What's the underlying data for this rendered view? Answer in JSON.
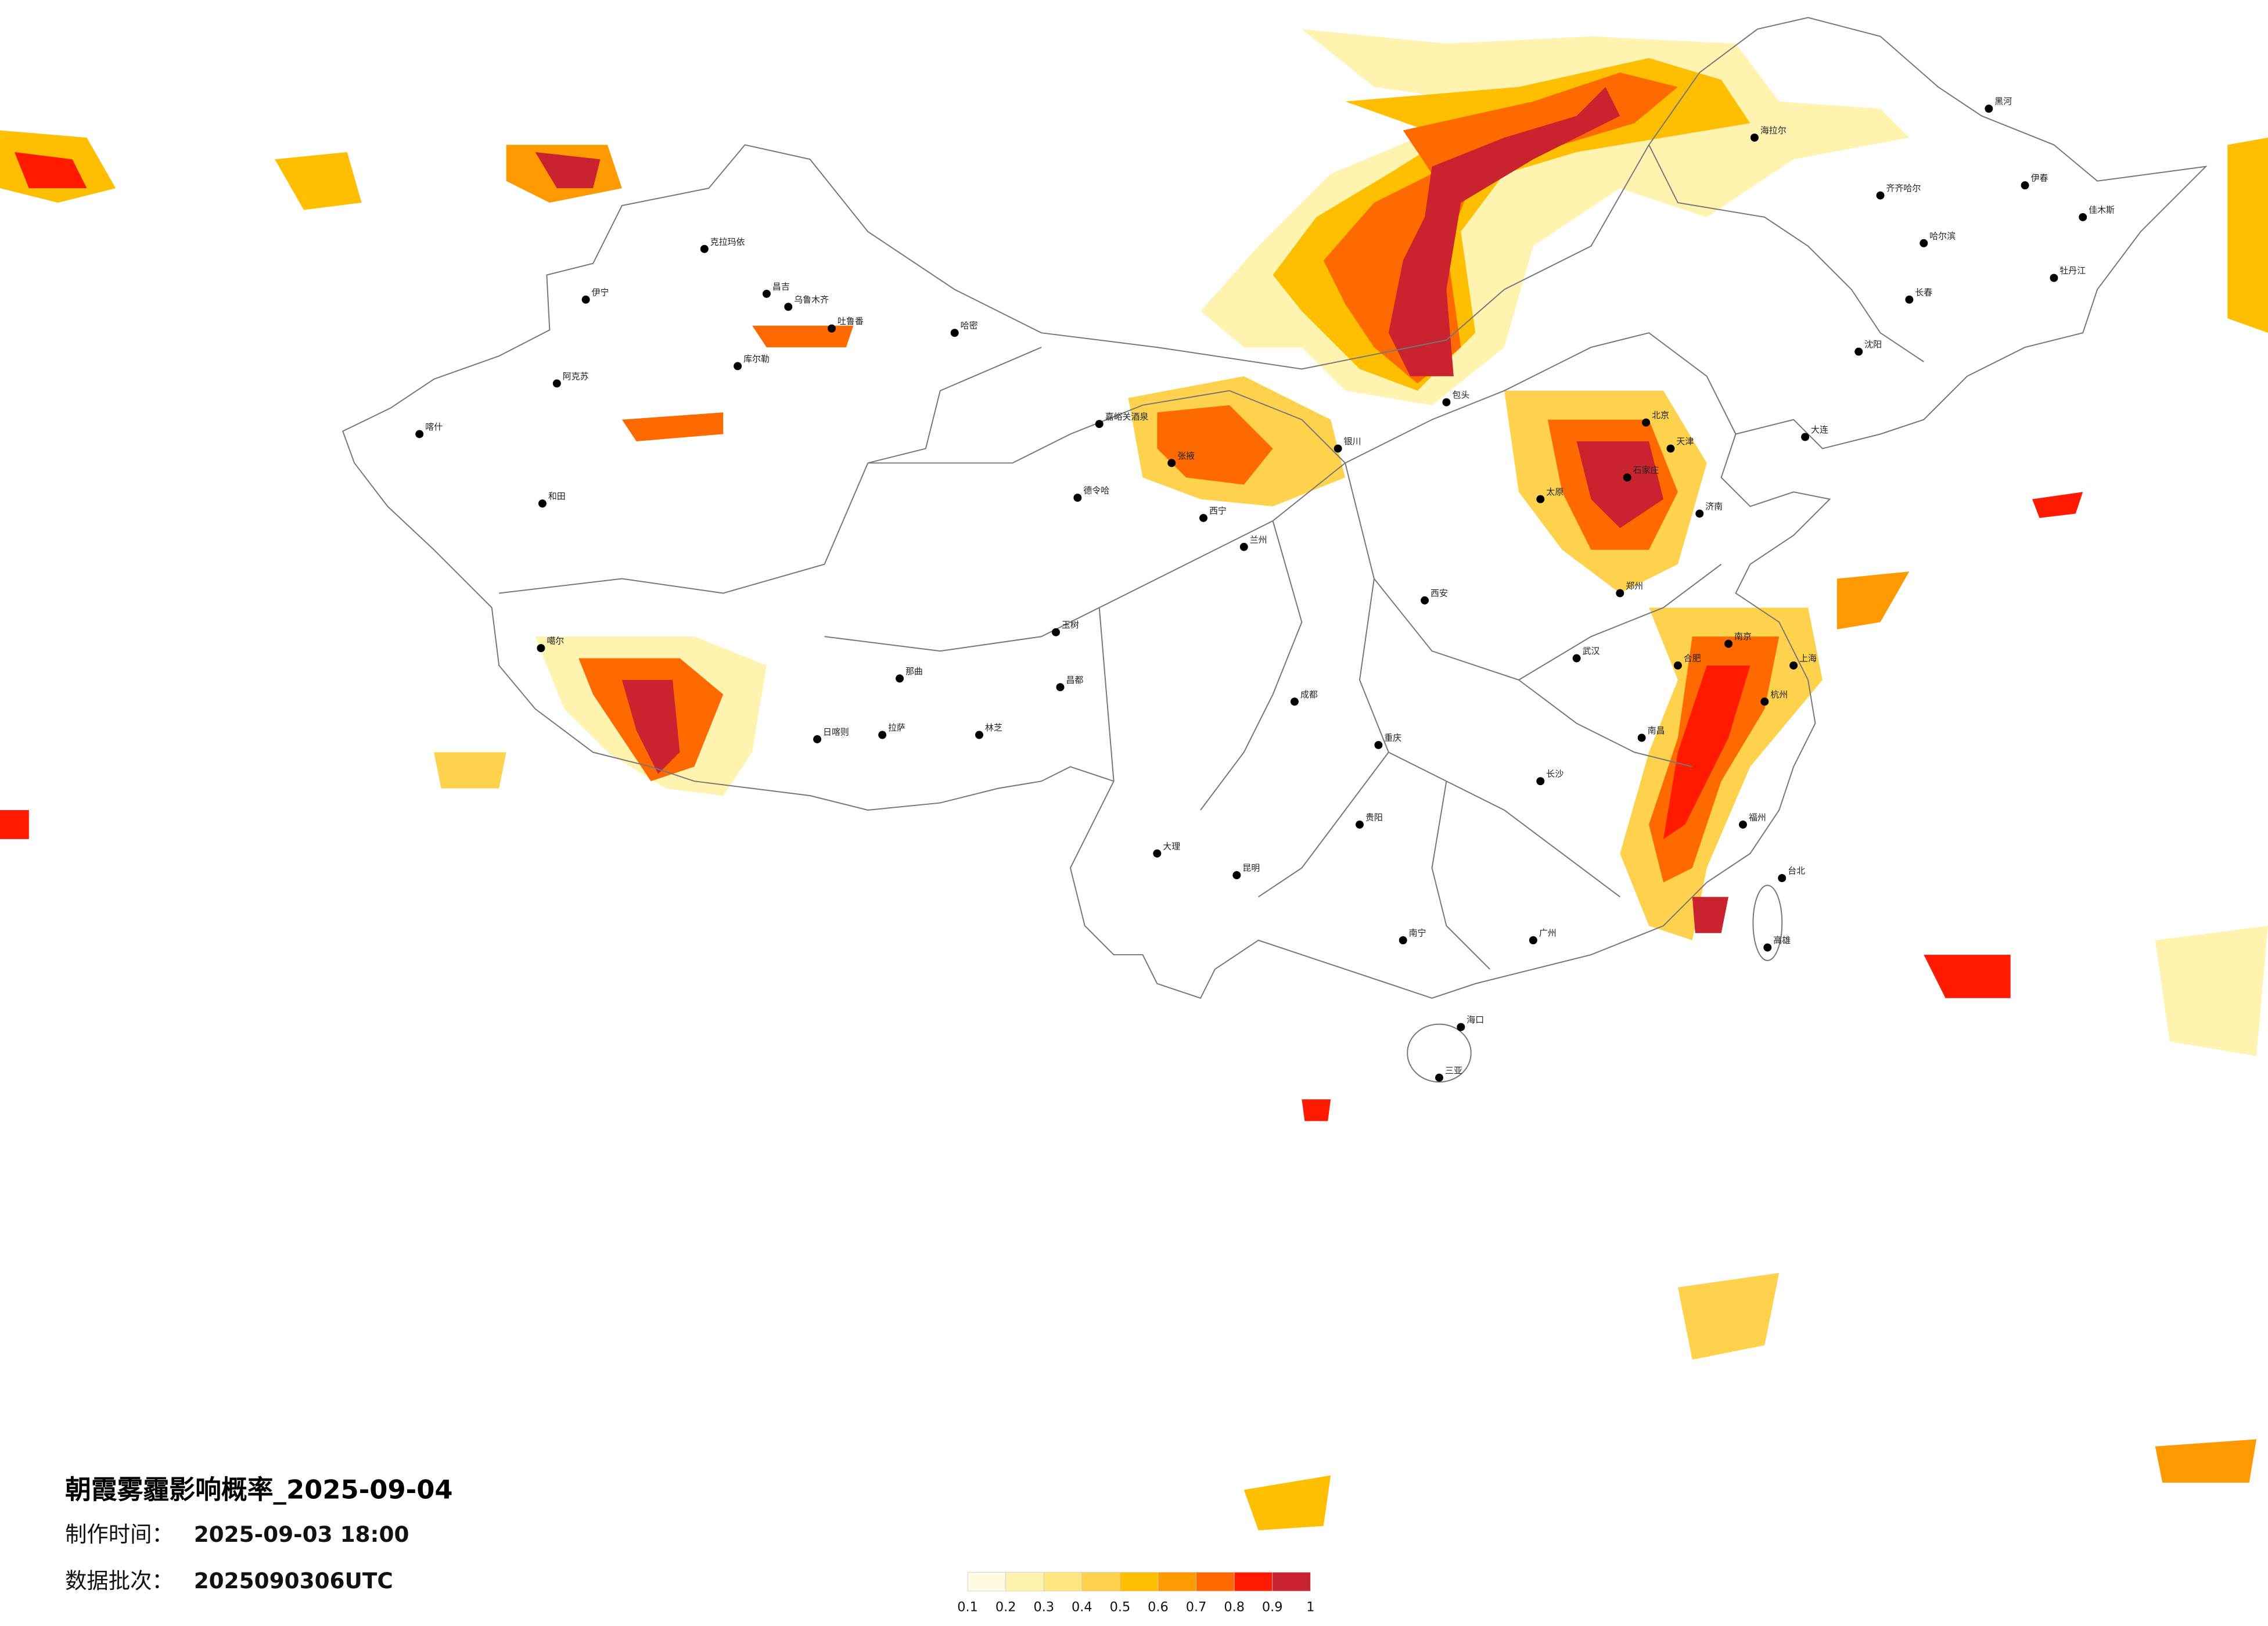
{
  "title": "朝霞雾霾影响概率_2025-09-04",
  "production_time": {
    "label": "制作时间：",
    "value": "2025-09-03 18:00"
  },
  "batch": {
    "label": "数据批次：",
    "value": "2025090306UTC"
  },
  "legend": {
    "colors": [
      "#fffbe3",
      "#fff3b0",
      "#ffe680",
      "#ffd24d",
      "#ffbf00",
      "#ff9900",
      "#ff6a00",
      "#ff1a00",
      "#c8232f"
    ],
    "ticks": [
      0.1,
      0.2,
      0.3,
      0.4,
      0.5,
      0.6,
      0.7,
      0.8,
      0.9,
      1
    ]
  },
  "cities": [
    "伊宁",
    "克拉玛依",
    "昌吉",
    "乌鲁木齐",
    "吐鲁番",
    "哈密",
    "库尔勒",
    "阿克苏",
    "喀什",
    "和田",
    "嘉峪关酒泉",
    "张掖",
    "西宁",
    "兰州",
    "德令哈",
    "玉树",
    "昌都",
    "拉萨",
    "日喀则",
    "林芝",
    "那曲",
    "噶尔",
    "银川",
    "包头",
    "海拉尔",
    "齐齐哈尔",
    "哈尔滨",
    "长春",
    "沈阳",
    "大连",
    "北京",
    "天津",
    "石家庄",
    "太原",
    "济南",
    "郑州",
    "西安",
    "成都",
    "重庆",
    "武汉",
    "南京",
    "上海",
    "杭州",
    "合肥",
    "长沙",
    "南昌",
    "福州",
    "贵阳",
    "昆明",
    "南宁",
    "广州",
    "海口",
    "三亚",
    "台北",
    "高雄",
    "黑河",
    "伊春",
    "佳木斯",
    "牡丹江",
    "大理"
  ]
}
